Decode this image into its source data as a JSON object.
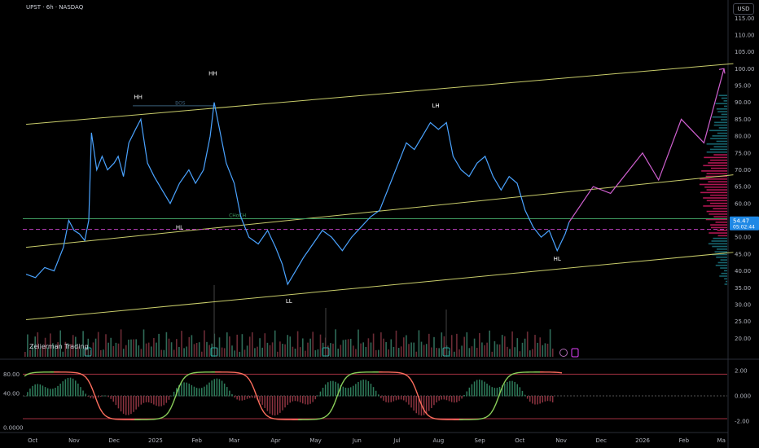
{
  "header": {
    "title": "UPST · 6h · NASDAQ",
    "currency": "USD",
    "brand": "Zeiierman Trading"
  },
  "colors": {
    "background": "#000000",
    "price": "#4aa3ff",
    "channel": "#c8cc6a",
    "projection": "#d060d0",
    "level": "#3f9a60",
    "dashed": "#c040c0",
    "osc_up": "#8bcf5a",
    "osc_down": "#ff6f5e"
  },
  "chart_data": {
    "type": "line",
    "y_axis": {
      "min": 15,
      "max": 117,
      "ticks": [
        20,
        25,
        30,
        35,
        40,
        45,
        50,
        55,
        60,
        65,
        70,
        75,
        80,
        85,
        90,
        95,
        100,
        105,
        110,
        115
      ],
      "tick_labels": [
        "20.00",
        "25.00",
        "30.00",
        "35.00",
        "40.00",
        "45.00",
        "50.00",
        "55.00",
        "60.00",
        "65.00",
        "70.00",
        "75.00",
        "80.00",
        "85.00",
        "90.00",
        "95.00",
        "100.00",
        "105.00",
        "110.00",
        "115.00"
      ]
    },
    "x_axis": {
      "start": "2024-09-26",
      "end": "2026-03-03",
      "labels": [
        {
          "date": "2024-10-01",
          "text": "Oct"
        },
        {
          "date": "2024-11-01",
          "text": "Nov"
        },
        {
          "date": "2024-12-01",
          "text": "Dec"
        },
        {
          "date": "2025-01-01",
          "text": "2025"
        },
        {
          "date": "2025-02-01",
          "text": "Feb"
        },
        {
          "date": "2025-03-01",
          "text": "Mar"
        },
        {
          "date": "2025-04-01",
          "text": "Apr"
        },
        {
          "date": "2025-05-01",
          "text": "May"
        },
        {
          "date": "2025-06-01",
          "text": "Jun"
        },
        {
          "date": "2025-07-01",
          "text": "Jul"
        },
        {
          "date": "2025-08-01",
          "text": "Aug"
        },
        {
          "date": "2025-09-01",
          "text": "Sep"
        },
        {
          "date": "2025-10-01",
          "text": "Oct"
        },
        {
          "date": "2025-11-01",
          "text": "Nov"
        },
        {
          "date": "2025-12-01",
          "text": "Dec"
        },
        {
          "date": "2026-01-01",
          "text": "2026"
        },
        {
          "date": "2026-02-01",
          "text": "Feb"
        },
        {
          "date": "2026-03-01",
          "text": "Ma"
        }
      ]
    },
    "price_series": [
      [
        "2024-09-26",
        39
      ],
      [
        "2024-10-03",
        38
      ],
      [
        "2024-10-10",
        41
      ],
      [
        "2024-10-17",
        40
      ],
      [
        "2024-10-24",
        47
      ],
      [
        "2024-10-28",
        55
      ],
      [
        "2024-11-01",
        52
      ],
      [
        "2024-11-05",
        51
      ],
      [
        "2024-11-09",
        49
      ],
      [
        "2024-11-12",
        55
      ],
      [
        "2024-11-14",
        81
      ],
      [
        "2024-11-18",
        70
      ],
      [
        "2024-11-22",
        74
      ],
      [
        "2024-11-26",
        70
      ],
      [
        "2024-12-01",
        72
      ],
      [
        "2024-12-04",
        74
      ],
      [
        "2024-12-08",
        68
      ],
      [
        "2024-12-12",
        78
      ],
      [
        "2024-12-17",
        82
      ],
      [
        "2024-12-21",
        85
      ],
      [
        "2024-12-26",
        72
      ],
      [
        "2024-12-31",
        68
      ],
      [
        "2025-01-06",
        64
      ],
      [
        "2025-01-12",
        60
      ],
      [
        "2025-01-19",
        66
      ],
      [
        "2025-01-26",
        70
      ],
      [
        "2025-01-31",
        66
      ],
      [
        "2025-02-06",
        70
      ],
      [
        "2025-02-11",
        80
      ],
      [
        "2025-02-14",
        90
      ],
      [
        "2025-02-18",
        82
      ],
      [
        "2025-02-23",
        72
      ],
      [
        "2025-03-01",
        66
      ],
      [
        "2025-03-06",
        56
      ],
      [
        "2025-03-12",
        50
      ],
      [
        "2025-03-19",
        48
      ],
      [
        "2025-03-26",
        52
      ],
      [
        "2025-04-01",
        47
      ],
      [
        "2025-04-06",
        42
      ],
      [
        "2025-04-10",
        36
      ],
      [
        "2025-04-16",
        40
      ],
      [
        "2025-04-22",
        44
      ],
      [
        "2025-04-29",
        48
      ],
      [
        "2025-05-06",
        52
      ],
      [
        "2025-05-13",
        50
      ],
      [
        "2025-05-21",
        46
      ],
      [
        "2025-05-28",
        50
      ],
      [
        "2025-06-04",
        53
      ],
      [
        "2025-06-11",
        56
      ],
      [
        "2025-06-18",
        58
      ],
      [
        "2025-06-25",
        65
      ],
      [
        "2025-07-02",
        72
      ],
      [
        "2025-07-08",
        78
      ],
      [
        "2025-07-14",
        76
      ],
      [
        "2025-07-20",
        80
      ],
      [
        "2025-07-26",
        84
      ],
      [
        "2025-08-01",
        82
      ],
      [
        "2025-08-07",
        84
      ],
      [
        "2025-08-12",
        74
      ],
      [
        "2025-08-18",
        70
      ],
      [
        "2025-08-24",
        68
      ],
      [
        "2025-08-30",
        72
      ],
      [
        "2025-09-05",
        74
      ],
      [
        "2025-09-11",
        68
      ],
      [
        "2025-09-17",
        64
      ],
      [
        "2025-09-23",
        68
      ],
      [
        "2025-09-29",
        66
      ],
      [
        "2025-10-05",
        58
      ],
      [
        "2025-10-11",
        53
      ],
      [
        "2025-10-17",
        50
      ],
      [
        "2025-10-23",
        52
      ],
      [
        "2025-10-29",
        46
      ],
      [
        "2025-11-04",
        51
      ],
      [
        "2025-11-07",
        54.5
      ]
    ],
    "projection": [
      [
        "2025-11-07",
        54.5
      ],
      [
        "2025-11-25",
        65
      ],
      [
        "2025-12-08",
        63
      ],
      [
        "2026-01-01",
        75
      ],
      [
        "2026-01-13",
        67
      ],
      [
        "2026-01-30",
        85
      ],
      [
        "2026-02-16",
        78
      ],
      [
        "2026-03-03",
        100
      ]
    ],
    "channel_lines": [
      {
        "name": "upper",
        "from": [
          "2024-09-26",
          83.5
        ],
        "to": [
          "2026-03-10",
          101.5
        ]
      },
      {
        "name": "middle",
        "from": [
          "2024-09-26",
          47
        ],
        "to": [
          "2026-03-10",
          68.5
        ]
      },
      {
        "name": "lower",
        "from": [
          "2024-09-26",
          25.5
        ],
        "to": [
          "2026-03-10",
          45.5
        ]
      }
    ],
    "levels": [
      {
        "name": "choch",
        "value": 55.5,
        "label": "CHoCH",
        "label_date": "2025-02-25"
      },
      {
        "name": "dashed",
        "value": 52.3
      }
    ],
    "bos": {
      "label": "BOS",
      "value": 89,
      "from": "2024-12-15",
      "to": "2025-02-14"
    },
    "annotations": [
      {
        "text": "HH",
        "date": "2024-12-19",
        "value": 91
      },
      {
        "text": "HH",
        "date": "2025-02-13",
        "value": 98
      },
      {
        "text": "LH",
        "date": "2025-07-30",
        "value": 88.5
      },
      {
        "text": "HL",
        "date": "2025-01-19",
        "value": 52.3
      },
      {
        "text": "LL",
        "date": "2025-04-11",
        "value": 30.5
      },
      {
        "text": "HL",
        "date": "2025-10-29",
        "value": 43
      }
    ],
    "current_price": {
      "value": 54.47,
      "label": "54.47",
      "countdown": "05:02:44"
    },
    "oscillator": {
      "tick_labels_left": [
        "80.00",
        "40.00",
        "0.0000"
      ],
      "tick_labels_right": [
        "2.00",
        "0.000",
        "-2.00"
      ],
      "y_min": -3,
      "y_max": 3
    }
  }
}
